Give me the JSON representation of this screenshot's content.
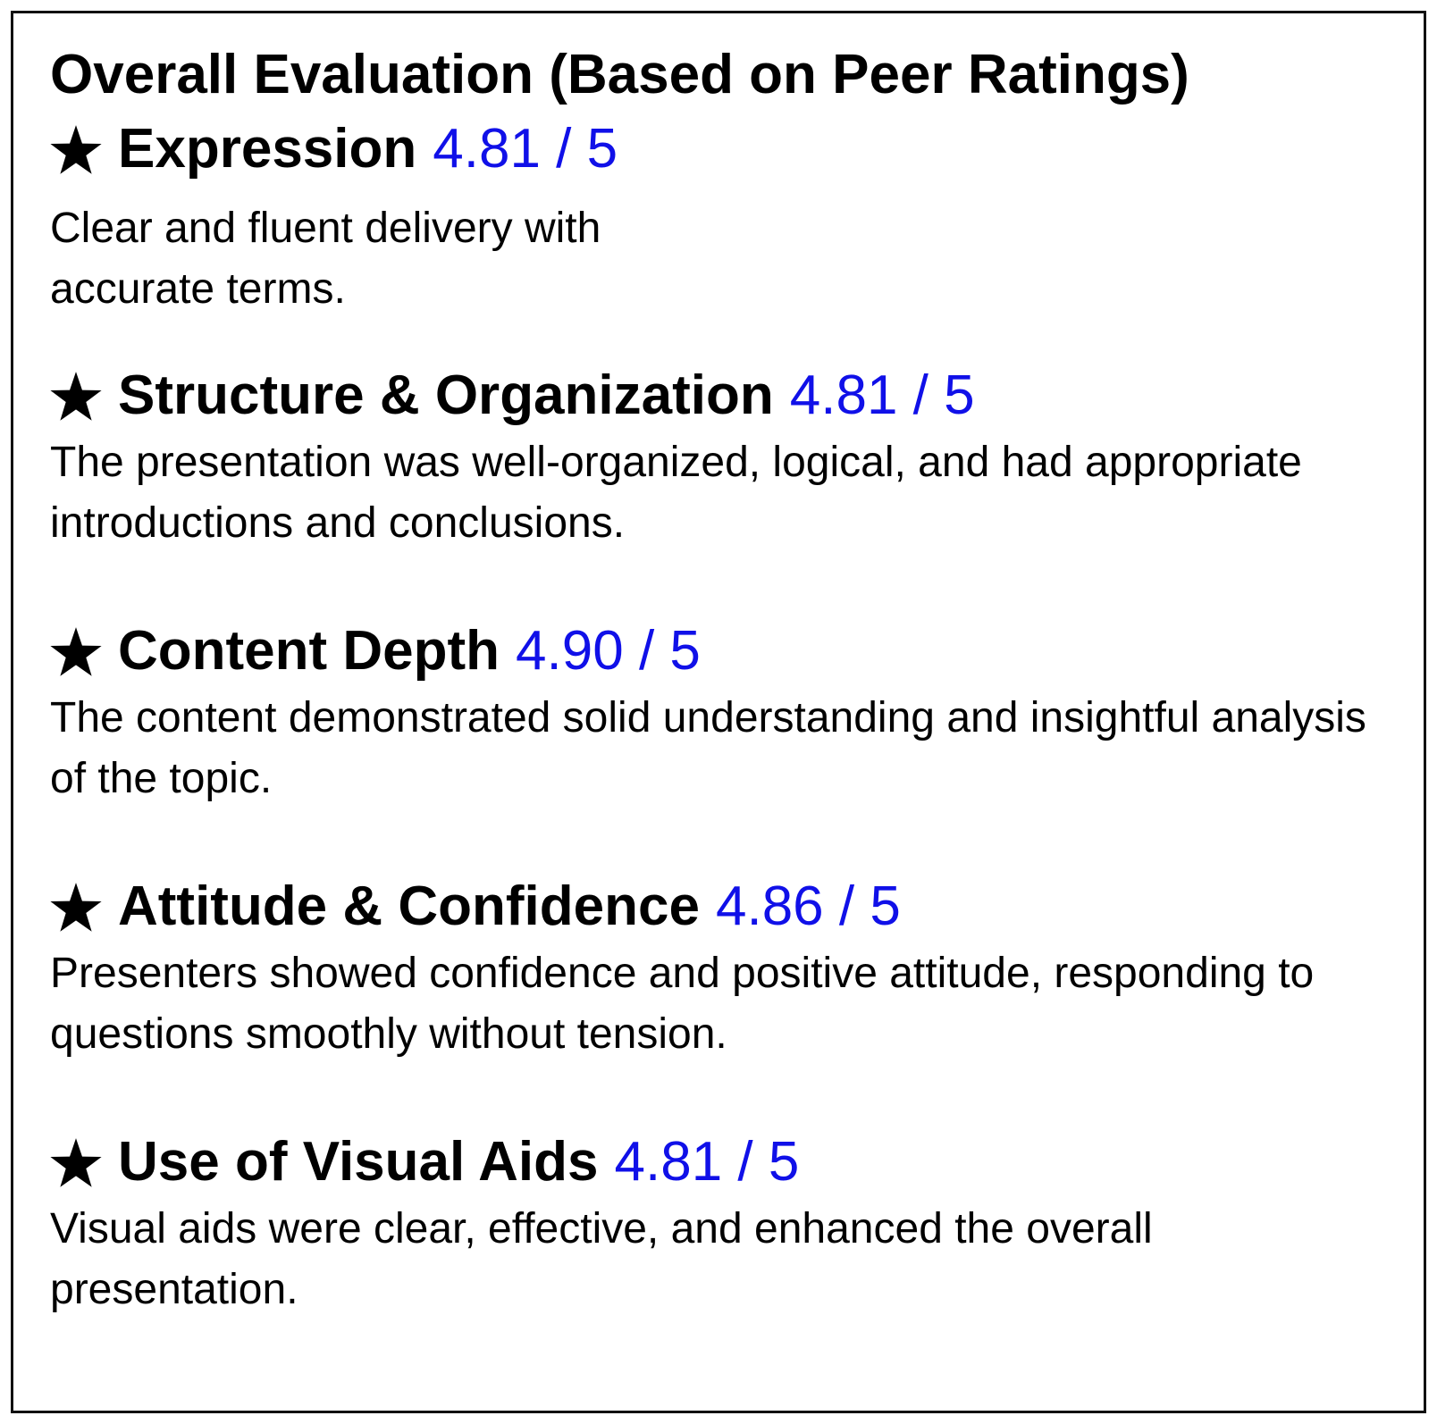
{
  "title": "Overall Evaluation (Based on Peer Ratings)",
  "colors": {
    "score": "#1010e8",
    "text": "#000000",
    "border": "#111111"
  },
  "icon": "star-icon",
  "sections": [
    {
      "criterion": "Expression",
      "score": "4.81 / 5",
      "rating": 4.81,
      "description": "Clear and fluent delivery with accurate terms."
    },
    {
      "criterion": "Structure & Organization",
      "score": "4.81 / 5",
      "rating": 4.81,
      "description": "The presentation was well-organized, logical, and had appropriate introductions and conclusions."
    },
    {
      "criterion": "Content Depth",
      "score": "4.90 / 5",
      "rating": 4.9,
      "description": "The content demonstrated solid understanding and insightful analysis of the topic."
    },
    {
      "criterion": "Attitude & Confidence",
      "score": "4.86 / 5",
      "rating": 4.86,
      "description": "Presenters showed confidence and positive attitude, responding to questions smoothly without tension."
    },
    {
      "criterion": "Use of Visual Aids",
      "score": "4.81 / 5",
      "rating": 4.81,
      "description": "Visual aids were clear, effective, and enhanced the overall presentation."
    }
  ]
}
